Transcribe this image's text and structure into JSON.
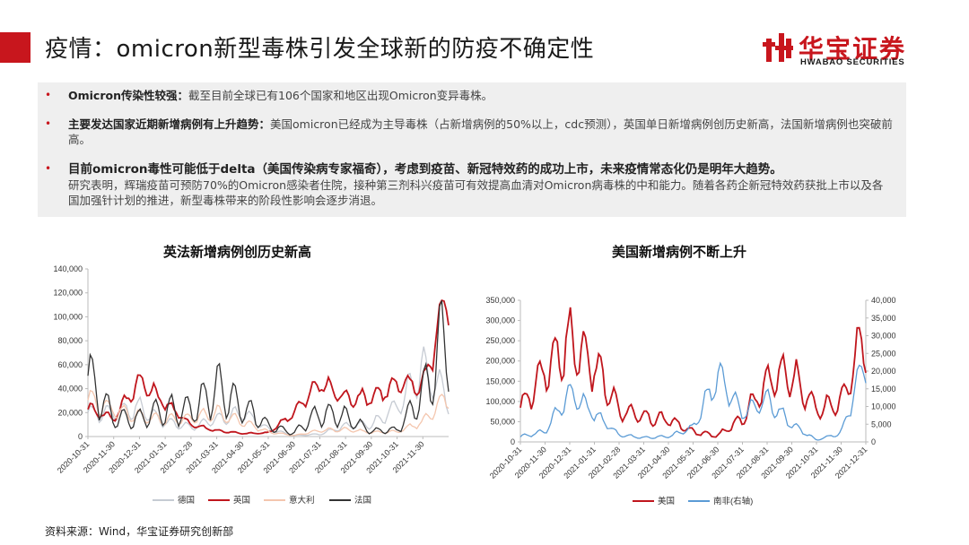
{
  "header": {
    "title": "疫情：omicron新型毒株引发全球新的防疫不确定性",
    "logo_cn": "华宝证券",
    "logo_en": "HWABAO SECURITIES"
  },
  "summary": {
    "bullet": "•",
    "item1_bold": "Omicron传染性较强：",
    "item1_text": "截至目前全球已有106个国家和地区出现Omicron变异毒株。",
    "item2_bold": "主要发达国家近期新增病例有上升趋势：",
    "item2_text": "美国omicron已经成为主导毒株（占新增病例的50%以上，cdc预测），英国单日新增病例创历史新高，法国新增病例也突破前高。",
    "item3_bold": "目前omicron毒性可能低于delta（美国传染病专家福奇），考虑到疫苗、新冠特效药的成功上市，未来疫情常态化仍是明年大趋势。",
    "item3_text": "研究表明，辉瑞疫苗可预防70%的Omicron感染者住院，接种第三剂科兴疫苗可有效提高血清对Omicron病毒株的中和能力。随着各药企新冠特效药获批上市以及各国加强针计划的推进，新型毒株带来的阶段性影响会逐步消退。"
  },
  "source": "资料来源：Wind，华宝证券研究创新部",
  "chart_data": [
    {
      "type": "line",
      "title": "英法新增病例创历史新高",
      "xlabel": "",
      "ylabel": "",
      "ylim": [
        0,
        140000
      ],
      "yticks": [
        "0",
        "20,000",
        "40,000",
        "60,000",
        "80,000",
        "100,000",
        "120,000",
        "140,000"
      ],
      "x": [
        "2020-10-31",
        "2020-11-30",
        "2020-12-31",
        "2021-01-31",
        "2021-02-28",
        "2021-03-31",
        "2021-04-30",
        "2021-05-31",
        "2021-06-30",
        "2021-07-31",
        "2021-08-31",
        "2021-09-30",
        "2021-10-31",
        "2021-11-30",
        "2021-12-21"
      ],
      "xticks": [
        "2020-10-31",
        "2020-11-30",
        "2020-12-31",
        "2021-01-31",
        "2021-02-28",
        "2021-03-31",
        "2021-04-30",
        "2021-05-31",
        "2021-06-30",
        "2021-07-31",
        "2021-08-31",
        "2021-09-30",
        "2021-10-31",
        "2021-11-30"
      ],
      "legend_position": "bottom",
      "series": [
        {
          "name": "德国",
          "color": "#c6cbd3",
          "values": [
            19000,
            20000,
            24000,
            12000,
            8000,
            14000,
            20000,
            6000,
            800,
            2000,
            9000,
            10000,
            25000,
            55000,
            32000
          ]
        },
        {
          "name": "英国",
          "color": "#c0161d",
          "values": [
            24000,
            15000,
            47000,
            28000,
            10000,
            5000,
            2500,
            3000,
            20000,
            45000,
            32000,
            33000,
            43000,
            43000,
            122000
          ]
        },
        {
          "name": "意大利",
          "color": "#f4c6ae",
          "values": [
            31000,
            22000,
            17000,
            14000,
            15000,
            20000,
            12000,
            4000,
            800,
            5000,
            6000,
            3500,
            4000,
            12000,
            36000
          ]
        },
        {
          "name": "法国",
          "color": "#333333",
          "values": [
            50000,
            15000,
            15000,
            22000,
            22000,
            40000,
            25000,
            9000,
            3000,
            20000,
            16000,
            4500,
            5500,
            35000,
            90000
          ]
        }
      ]
    },
    {
      "type": "line",
      "title": "美国新增病例不断上升",
      "xlabel": "",
      "ylabel": "",
      "ylim": [
        0,
        350000
      ],
      "ylim_right": [
        0,
        40000
      ],
      "yticks": [
        "0",
        "50,000",
        "100,000",
        "150,000",
        "200,000",
        "250,000",
        "300,000",
        "350,000"
      ],
      "yticks_right": [
        "0",
        "5,000",
        "10,000",
        "15,000",
        "20,000",
        "25,000",
        "30,000",
        "35,000",
        "40,000"
      ],
      "x": [
        "2020-10-31",
        "2020-11-30",
        "2020-12-31",
        "2021-01-31",
        "2021-02-28",
        "2021-03-31",
        "2021-04-30",
        "2021-05-31",
        "2021-06-30",
        "2021-07-31",
        "2021-08-31",
        "2021-09-30",
        "2021-10-31",
        "2021-11-30",
        "2021-12-31"
      ],
      "xticks": [
        "2020-10-31",
        "2020-11-30",
        "2020-12-31",
        "2021-01-31",
        "2021-02-28",
        "2021-03-31",
        "2021-04-30",
        "2021-05-31",
        "2021-06-30",
        "2021-07-31",
        "2021-08-31",
        "2021-09-30",
        "2021-10-31",
        "2021-11-30",
        "2021-12-31"
      ],
      "legend_position": "bottom",
      "series": [
        {
          "name": "美国",
          "axis": "left",
          "color": "#c0161d",
          "values": [
            80000,
            180000,
            250000,
            190000,
            80000,
            60000,
            55000,
            25000,
            15000,
            60000,
            150000,
            170000,
            80000,
            95000,
            270000
          ]
        },
        {
          "name": "南非(右轴)",
          "axis": "right",
          "color": "#5b9bd5",
          "values": [
            1500,
            3000,
            14000,
            8000,
            2000,
            1200,
            1500,
            4000,
            19000,
            8000,
            12000,
            5000,
            500,
            2500,
            24000
          ]
        }
      ]
    }
  ]
}
